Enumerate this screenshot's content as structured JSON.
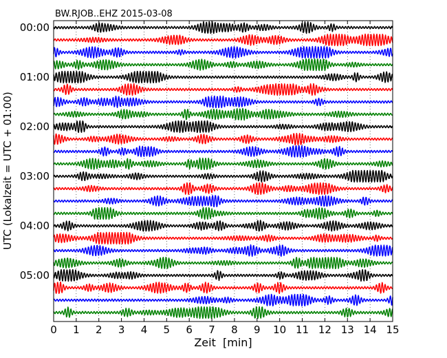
{
  "chart_data": {
    "type": "line",
    "title": "BW.RJOB..EHZ 2015-03-08",
    "xlabel": "Zeit  [min]",
    "ylabel": "UTC (Lokalzeit = UTC + 01:00)",
    "xlim": [
      0,
      15
    ],
    "x_ticks": [
      0,
      1,
      2,
      3,
      4,
      5,
      6,
      7,
      8,
      9,
      10,
      11,
      12,
      13,
      14,
      15
    ],
    "x_tick_labels": [
      "0",
      "1",
      "2",
      "3",
      "4",
      "5",
      "6",
      "7",
      "8",
      "9",
      "10",
      "11",
      "12",
      "13",
      "14",
      "15"
    ],
    "y_tick_labels": [
      "00:00",
      "01:00",
      "02:00",
      "03:00",
      "04:00",
      "05:00"
    ],
    "y_tick_rows": [
      0,
      4,
      8,
      12,
      16,
      20
    ],
    "trace_count": 24,
    "trace_interval_min": 15,
    "trace_colors": [
      "#000000",
      "#ff0000",
      "#0000ff",
      "#008000"
    ],
    "grid": "vertical dotted at each minute",
    "legend": "none"
  }
}
